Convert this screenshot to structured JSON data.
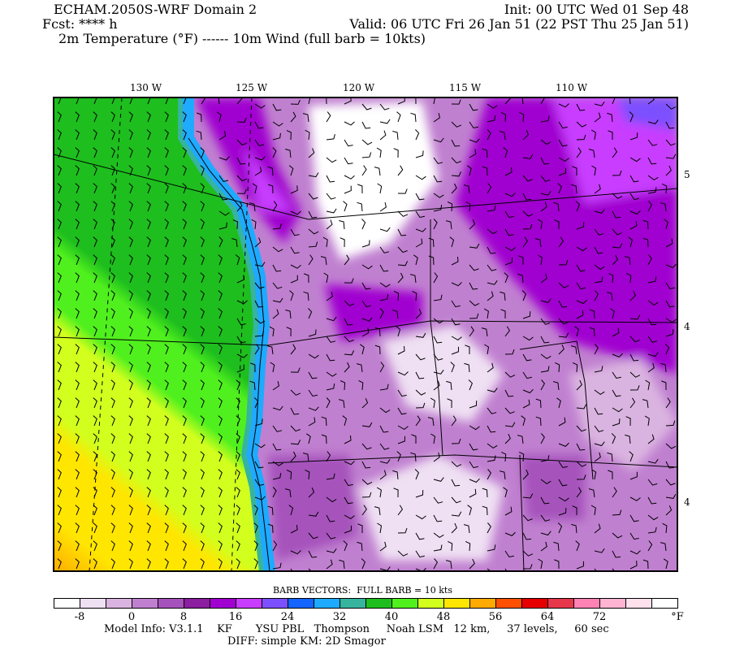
{
  "header": {
    "title": "ECHAM.2050S-WRF Domain 2",
    "init": "Init: 00 UTC Wed 01 Sep 48",
    "fcst": "Fcst: **** h",
    "valid": "Valid: 06 UTC Fri 26 Jan 51 (22 PST Thu 25 Jan 51)",
    "fields": "2m Temperature (°F) ------ 10m Wind (full barb = 10kts)"
  },
  "map": {
    "lon_labels": [
      "130 W",
      "125 W",
      "120 W",
      "115 W",
      "110 W"
    ],
    "lat_labels": [
      "5",
      "4",
      "4"
    ]
  },
  "colorbar": {
    "title": "BARB VECTORS:  FULL BARB = 10 kts",
    "colors": [
      "#ffffff",
      "#efe0f3",
      "#dab4e0",
      "#c080d0",
      "#a652bc",
      "#8c1ea0",
      "#a000d0",
      "#c83cff",
      "#7c50ff",
      "#1464ff",
      "#1eaaff",
      "#36b49e",
      "#1ebe1e",
      "#50f01e",
      "#d2ff1e",
      "#ffe600",
      "#ffaa00",
      "#ff5000",
      "#e60000",
      "#e6374b",
      "#ff82b4",
      "#ffb4d2",
      "#ffe1ec",
      "#ffffff"
    ],
    "labels": [
      "-8",
      "0",
      "8",
      "16",
      "24",
      "32",
      "40",
      "48",
      "56",
      "64",
      "72"
    ],
    "unit": "°F"
  },
  "footer": {
    "model_info": "Model Info: V3.1.1    KF       YSU PBL   Thompson     Noah LSM   12 km,     37 levels,     60 sec",
    "diff": "DIFF: simple KM: 2D Smagor"
  }
}
